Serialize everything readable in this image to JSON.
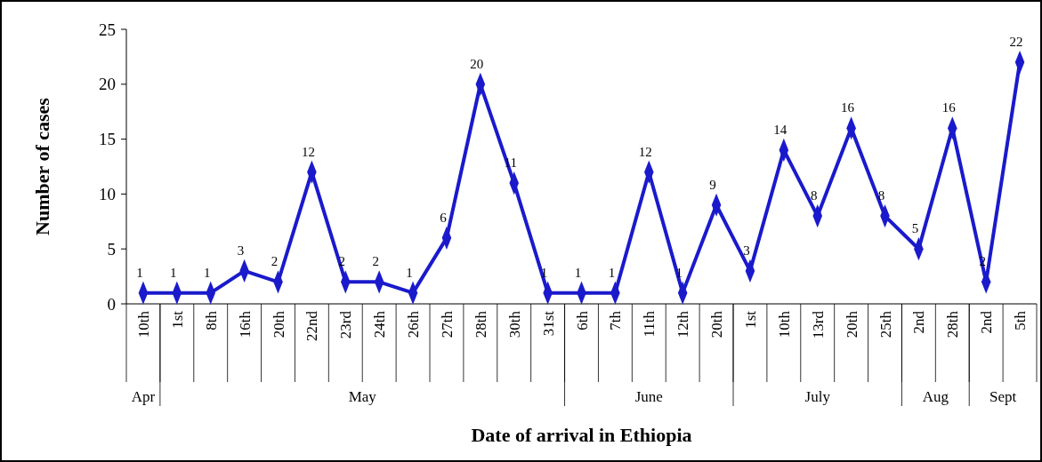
{
  "chart_data": {
    "type": "line",
    "xlabel": "Date of arrival in Ethiopia",
    "ylabel": "Number of cases",
    "categories": [
      "10th",
      "1st",
      "8th",
      "16th",
      "20th",
      "22nd",
      "23rd",
      "24th",
      "26th",
      "27th",
      "28th",
      "30th",
      "31st",
      "6th",
      "7th",
      "11th",
      "12th",
      "20th",
      "1st",
      "10th",
      "13rd",
      "20th",
      "25th",
      "2nd",
      "28th",
      "2nd",
      "5th"
    ],
    "series": [
      {
        "color": "#1a1acc",
        "values": [
          1,
          1,
          1,
          3,
          2,
          12,
          2,
          2,
          1,
          6,
          20,
          11,
          1,
          1,
          1,
          12,
          1,
          9,
          3,
          14,
          8,
          16,
          8,
          5,
          16,
          2,
          22
        ]
      }
    ],
    "annotations": [
      "Apr",
      "May",
      "June",
      "July",
      "Aug",
      "Sept"
    ],
    "ylim": [
      0,
      25
    ],
    "yticks": [
      0,
      5,
      10,
      15,
      20,
      25
    ],
    "grid": false,
    "marker": "diamond",
    "line_style": "solid",
    "data_labels": true
  }
}
